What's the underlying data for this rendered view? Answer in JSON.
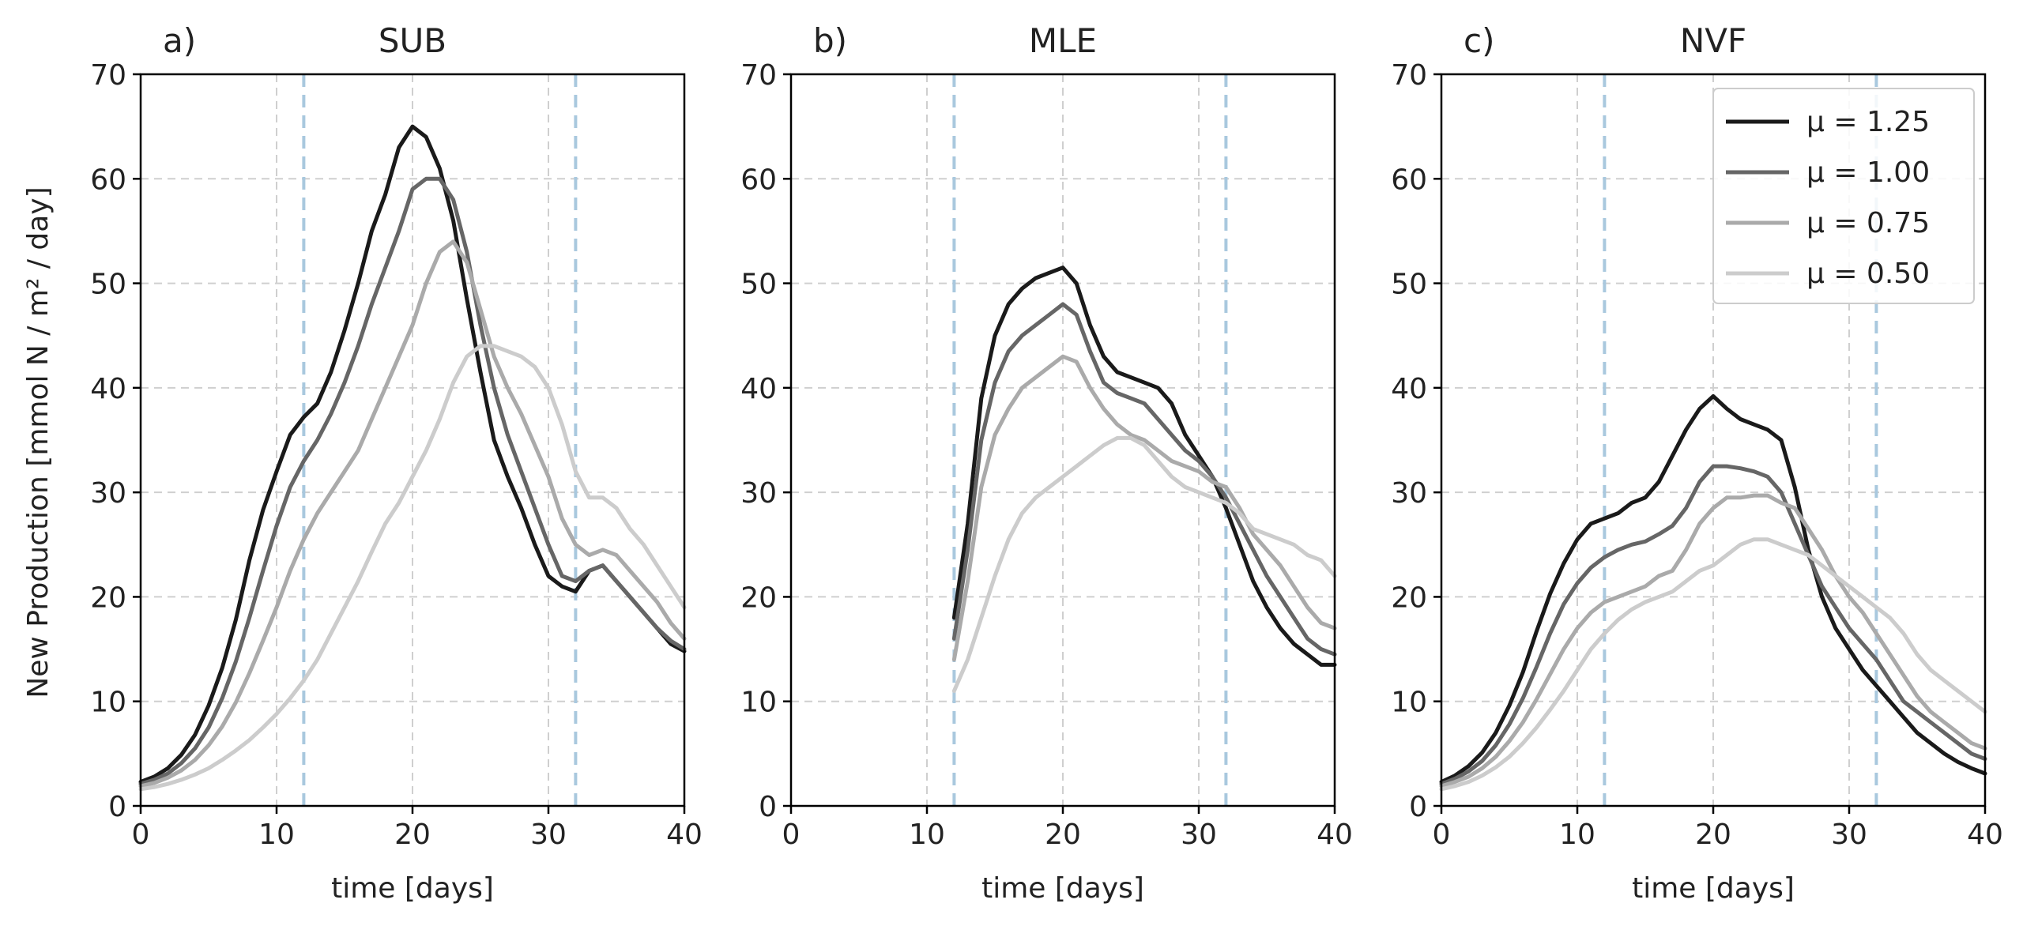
{
  "figure": {
    "ylabel": "New Production [mmol N / m² / day]"
  },
  "chart_data": [
    {
      "type": "line",
      "panel_letter": "a)",
      "title": "SUB",
      "xlabel": "time [days]",
      "ylabel": "New Production [mmol N / m² / day]",
      "xlim": [
        0,
        40
      ],
      "ylim": [
        0,
        70
      ],
      "xticks": [
        0,
        10,
        20,
        30,
        40
      ],
      "yticks": [
        0,
        10,
        20,
        30,
        40,
        50,
        60,
        70
      ],
      "grid": true,
      "vlines": [
        12,
        32
      ],
      "series": [
        {
          "name": "μ = 1.25",
          "color": "#1a1a1a",
          "x": [
            0,
            1,
            2,
            3,
            4,
            5,
            6,
            7,
            8,
            9,
            10,
            11,
            12,
            13,
            14,
            15,
            16,
            17,
            18,
            19,
            20,
            21,
            22,
            23,
            24,
            25,
            26,
            27,
            28,
            29,
            30,
            31,
            32,
            33,
            34,
            35,
            36,
            37,
            38,
            39,
            40
          ],
          "y": [
            2.3,
            2.8,
            3.6,
            4.9,
            6.8,
            9.6,
            13.2,
            17.8,
            23.5,
            28.3,
            32,
            35.5,
            37.2,
            38.5,
            41.5,
            45.5,
            50,
            55,
            58.5,
            63,
            65,
            64,
            61,
            56,
            48.5,
            41.5,
            35,
            31.5,
            28.5,
            25,
            22,
            21,
            20.5,
            22.5,
            23,
            21.5,
            20,
            18.5,
            17,
            15.5,
            14.8
          ]
        },
        {
          "name": "μ = 1.00",
          "color": "#666666",
          "x": [
            0,
            1,
            2,
            3,
            4,
            5,
            6,
            7,
            8,
            9,
            10,
            11,
            12,
            13,
            14,
            15,
            16,
            17,
            18,
            19,
            20,
            21,
            22,
            23,
            24,
            25,
            26,
            27,
            28,
            29,
            30,
            31,
            32,
            33,
            34,
            35,
            36,
            37,
            38,
            39,
            40
          ],
          "y": [
            2.1,
            2.5,
            3.1,
            4.1,
            5.5,
            7.5,
            10.3,
            13.8,
            18,
            22.5,
            26.8,
            30.5,
            33,
            35,
            37.5,
            40.5,
            44,
            48,
            51.5,
            55,
            59,
            60,
            60,
            58,
            53,
            46,
            40,
            35.5,
            32,
            28.5,
            25,
            22,
            21.5,
            22.5,
            23,
            21.5,
            20,
            18.5,
            17,
            15.8,
            15
          ]
        },
        {
          "name": "μ = 0.75",
          "color": "#aaaaaa",
          "x": [
            0,
            1,
            2,
            3,
            4,
            5,
            6,
            7,
            8,
            9,
            10,
            11,
            12,
            13,
            14,
            15,
            16,
            17,
            18,
            19,
            20,
            21,
            22,
            23,
            24,
            25,
            26,
            27,
            28,
            29,
            30,
            31,
            32,
            33,
            34,
            35,
            36,
            37,
            38,
            39,
            40
          ],
          "y": [
            1.9,
            2.2,
            2.7,
            3.4,
            4.4,
            5.8,
            7.6,
            9.9,
            12.7,
            15.8,
            19,
            22.5,
            25.5,
            28,
            30,
            32,
            34,
            37,
            40,
            43,
            46,
            50,
            53,
            54,
            52,
            47.5,
            43,
            40,
            37.5,
            34.5,
            31.5,
            27.5,
            25,
            24,
            24.5,
            24,
            22.5,
            21,
            19.5,
            17.5,
            16
          ]
        },
        {
          "name": "μ = 0.50",
          "color": "#cccccc",
          "x": [
            0,
            1,
            2,
            3,
            4,
            5,
            6,
            7,
            8,
            9,
            10,
            11,
            12,
            13,
            14,
            15,
            16,
            17,
            18,
            19,
            20,
            21,
            22,
            23,
            24,
            25,
            26,
            27,
            28,
            29,
            30,
            31,
            32,
            33,
            34,
            35,
            36,
            37,
            38,
            39,
            40
          ],
          "y": [
            1.6,
            1.8,
            2.1,
            2.5,
            3,
            3.6,
            4.4,
            5.3,
            6.3,
            7.5,
            8.8,
            10.3,
            12,
            14,
            16.5,
            19,
            21.5,
            24.3,
            27,
            29,
            31.5,
            34,
            37,
            40.5,
            43,
            44,
            44,
            43.5,
            43,
            42,
            40,
            36.5,
            32,
            29.5,
            29.5,
            28.5,
            26.5,
            25,
            23,
            21,
            19
          ]
        }
      ]
    },
    {
      "type": "line",
      "panel_letter": "b)",
      "title": "MLE",
      "xlabel": "time [days]",
      "xlim": [
        0,
        40
      ],
      "ylim": [
        0,
        70
      ],
      "xticks": [
        0,
        10,
        20,
        30,
        40
      ],
      "yticks": [
        0,
        10,
        20,
        30,
        40,
        50,
        60,
        70
      ],
      "grid": true,
      "vlines": [
        12,
        32
      ],
      "series": [
        {
          "name": "μ = 1.25",
          "color": "#1a1a1a",
          "x": [
            12,
            13,
            14,
            15,
            16,
            17,
            18,
            19,
            20,
            21,
            22,
            23,
            24,
            25,
            26,
            27,
            28,
            29,
            30,
            31,
            32,
            33,
            34,
            35,
            36,
            37,
            38,
            39,
            40
          ],
          "y": [
            18,
            27,
            39,
            45,
            48,
            49.5,
            50.5,
            51,
            51.5,
            50,
            46,
            43,
            41.5,
            41,
            40.5,
            40,
            38.5,
            35.5,
            33.5,
            31.5,
            28.5,
            25,
            21.5,
            19,
            17,
            15.5,
            14.5,
            13.5,
            13.5
          ]
        },
        {
          "name": "μ = 1.00",
          "color": "#666666",
          "x": [
            12,
            13,
            14,
            15,
            16,
            17,
            18,
            19,
            20,
            21,
            22,
            23,
            24,
            25,
            26,
            27,
            28,
            29,
            30,
            31,
            32,
            33,
            34,
            35,
            36,
            37,
            38,
            39,
            40
          ],
          "y": [
            16,
            24.5,
            35,
            40.5,
            43.5,
            45,
            46,
            47,
            48,
            47,
            43.5,
            40.5,
            39.5,
            39,
            38.5,
            37,
            35.5,
            34,
            33,
            31.5,
            29.5,
            27,
            24.5,
            22,
            20,
            18,
            16,
            15,
            14.5
          ]
        },
        {
          "name": "μ = 0.75",
          "color": "#aaaaaa",
          "x": [
            12,
            13,
            14,
            15,
            16,
            17,
            18,
            19,
            20,
            21,
            22,
            23,
            24,
            25,
            26,
            27,
            28,
            29,
            30,
            31,
            32,
            33,
            34,
            35,
            36,
            37,
            38,
            39,
            40
          ],
          "y": [
            14,
            21.5,
            30.5,
            35.5,
            38,
            40,
            41,
            42,
            43,
            42.5,
            40,
            38,
            36.5,
            35.5,
            35,
            34,
            33,
            32.5,
            32,
            31,
            30.5,
            28.5,
            26,
            24.5,
            23,
            21,
            19,
            17.5,
            17
          ]
        },
        {
          "name": "μ = 0.50",
          "color": "#cccccc",
          "x": [
            12,
            13,
            14,
            15,
            16,
            17,
            18,
            19,
            20,
            21,
            22,
            23,
            24,
            25,
            26,
            27,
            28,
            29,
            30,
            31,
            32,
            33,
            34,
            35,
            36,
            37,
            38,
            39,
            40
          ],
          "y": [
            11,
            14,
            18,
            22,
            25.5,
            28,
            29.5,
            30.5,
            31.5,
            32.5,
            33.5,
            34.5,
            35.2,
            35.2,
            34.5,
            33,
            31.5,
            30.5,
            30,
            29.5,
            29,
            28,
            26.5,
            26,
            25.5,
            25,
            24,
            23.5,
            22
          ]
        }
      ]
    },
    {
      "type": "line",
      "panel_letter": "c)",
      "title": "NVF",
      "xlabel": "time [days]",
      "xlim": [
        0,
        40
      ],
      "ylim": [
        0,
        70
      ],
      "xticks": [
        0,
        10,
        20,
        30,
        40
      ],
      "yticks": [
        0,
        10,
        20,
        30,
        40,
        50,
        60,
        70
      ],
      "grid": true,
      "vlines": [
        12,
        32
      ],
      "legend": "top-right",
      "series": [
        {
          "name": "μ = 1.25",
          "color": "#1a1a1a",
          "x": [
            0,
            1,
            2,
            3,
            4,
            5,
            6,
            7,
            8,
            9,
            10,
            11,
            12,
            13,
            14,
            15,
            16,
            17,
            18,
            19,
            20,
            21,
            22,
            23,
            24,
            25,
            26,
            27,
            28,
            29,
            30,
            31,
            32,
            33,
            34,
            35,
            36,
            37,
            38,
            39,
            40
          ],
          "y": [
            2.3,
            2.9,
            3.8,
            5.1,
            7,
            9.6,
            12.8,
            16.7,
            20.3,
            23.2,
            25.5,
            27,
            27.5,
            28,
            29,
            29.5,
            31,
            33.5,
            36,
            38,
            39.2,
            38,
            37,
            36.5,
            36,
            35,
            30.5,
            24.5,
            20,
            17,
            15,
            13,
            11.5,
            10,
            8.5,
            7,
            6,
            5,
            4.2,
            3.6,
            3.1
          ]
        },
        {
          "name": "μ = 1.00",
          "color": "#666666",
          "x": [
            0,
            1,
            2,
            3,
            4,
            5,
            6,
            7,
            8,
            9,
            10,
            11,
            12,
            13,
            14,
            15,
            16,
            17,
            18,
            19,
            20,
            21,
            22,
            23,
            24,
            25,
            26,
            27,
            28,
            29,
            30,
            31,
            32,
            33,
            34,
            35,
            36,
            37,
            38,
            39,
            40
          ],
          "y": [
            2.1,
            2.6,
            3.3,
            4.3,
            5.8,
            7.8,
            10.3,
            13.3,
            16.5,
            19.3,
            21.3,
            22.8,
            23.8,
            24.5,
            25,
            25.3,
            26,
            26.8,
            28.5,
            31,
            32.5,
            32.5,
            32.3,
            32,
            31.5,
            30,
            27,
            24,
            21,
            19,
            17,
            15.5,
            14,
            12,
            10,
            9,
            8,
            7,
            6,
            5,
            4.5
          ]
        },
        {
          "name": "μ = 0.75",
          "color": "#aaaaaa",
          "x": [
            0,
            1,
            2,
            3,
            4,
            5,
            6,
            7,
            8,
            9,
            10,
            11,
            12,
            13,
            14,
            15,
            16,
            17,
            18,
            19,
            20,
            21,
            22,
            23,
            24,
            25,
            26,
            27,
            28,
            29,
            30,
            31,
            32,
            33,
            34,
            35,
            36,
            37,
            38,
            39,
            40
          ],
          "y": [
            1.9,
            2.3,
            2.8,
            3.6,
            4.7,
            6.2,
            8,
            10.2,
            12.6,
            15,
            17,
            18.5,
            19.5,
            20,
            20.5,
            21,
            22,
            22.5,
            24.5,
            27,
            28.5,
            29.5,
            29.5,
            29.7,
            29.7,
            29,
            28.5,
            26.5,
            24.5,
            22,
            20,
            18.5,
            16.5,
            14.5,
            12.5,
            10.5,
            9,
            8,
            7,
            6,
            5.5
          ]
        },
        {
          "name": "μ = 0.50",
          "color": "#cccccc",
          "x": [
            0,
            1,
            2,
            3,
            4,
            5,
            6,
            7,
            8,
            9,
            10,
            11,
            12,
            13,
            14,
            15,
            16,
            17,
            18,
            19,
            20,
            21,
            22,
            23,
            24,
            25,
            26,
            27,
            28,
            29,
            30,
            31,
            32,
            33,
            34,
            35,
            36,
            37,
            38,
            39,
            40
          ],
          "y": [
            1.6,
            1.9,
            2.3,
            2.9,
            3.7,
            4.7,
            6,
            7.5,
            9.2,
            11,
            13,
            15,
            16.5,
            17.8,
            18.8,
            19.5,
            20,
            20.5,
            21.5,
            22.5,
            23,
            24,
            25,
            25.5,
            25.5,
            25,
            24.5,
            24,
            23,
            22,
            21,
            20,
            19,
            18,
            16.5,
            14.5,
            13,
            12,
            11,
            10,
            9
          ]
        }
      ]
    }
  ]
}
